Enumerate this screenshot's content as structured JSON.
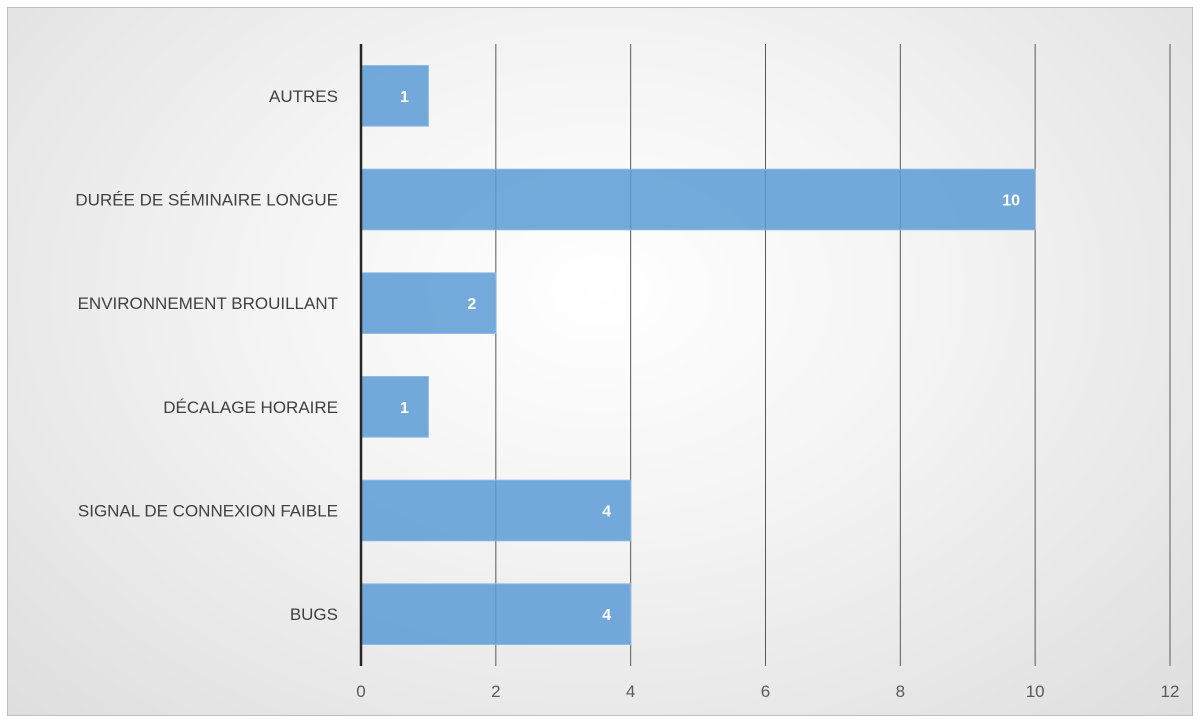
{
  "chart_data": {
    "type": "bar",
    "orientation": "horizontal",
    "categories": [
      "AUTRES",
      "DURÉE DE SÉMINAIRE LONGUE",
      "ENVIRONNEMENT BROUILLANT",
      "DÉCALAGE HORAIRE",
      "SIGNAL DE CONNEXION FAIBLE",
      "BUGS"
    ],
    "values": [
      1,
      10,
      2,
      1,
      4,
      4
    ],
    "data_labels": [
      "1",
      "10",
      "2",
      "1",
      "4",
      "4"
    ],
    "title": "",
    "xlabel": "",
    "ylabel": "",
    "xlim": [
      0,
      12
    ],
    "xticks": [
      0,
      2,
      4,
      6,
      8,
      10,
      12
    ],
    "xtick_labels": [
      "0",
      "2",
      "4",
      "6",
      "8",
      "10",
      "12"
    ],
    "grid": true,
    "legend": "none",
    "colors": {
      "bar": "#5b9bd5",
      "bar_border": "#8fb9e2",
      "gridline": "#595959",
      "axis": "#262626",
      "data_label": "#ffffff"
    }
  }
}
